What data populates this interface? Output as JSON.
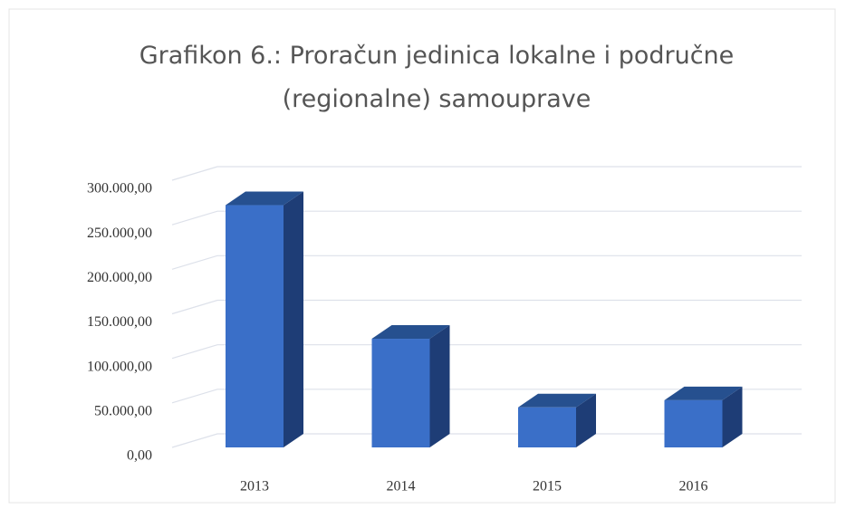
{
  "chart_data": {
    "type": "bar3d",
    "title": "Grafikon 6.: Proračun jedinica lokalne i područne (regionalne) samouprave",
    "categories": [
      "2013",
      "2014",
      "2015",
      "2016"
    ],
    "values": [
      272000,
      122000,
      45000,
      53000
    ],
    "color": "#3a6fc8",
    "ylim": [
      0,
      300000
    ],
    "yticks": [
      {
        "value": 0,
        "label": "0,00"
      },
      {
        "value": 50000,
        "label": "50.000,00"
      },
      {
        "value": 100000,
        "label": "100.000,00"
      },
      {
        "value": 150000,
        "label": "150.000,00"
      },
      {
        "value": 200000,
        "label": "200.000,00"
      },
      {
        "value": 250000,
        "label": "250.000,00"
      },
      {
        "value": 300000,
        "label": "300.000,00"
      }
    ],
    "grid": true
  }
}
